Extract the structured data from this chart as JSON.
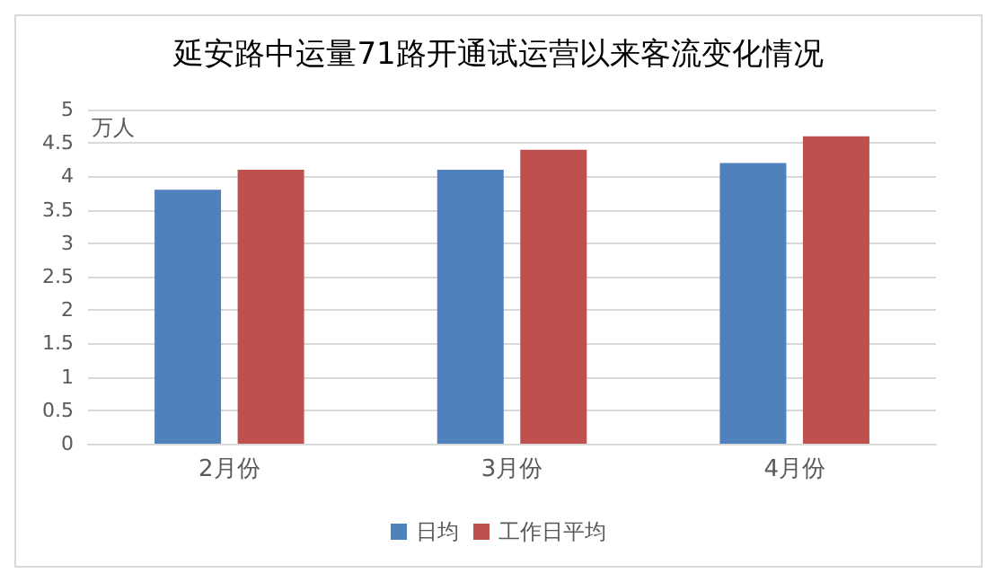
{
  "chart_data": {
    "type": "bar",
    "title": "延安路中运量71路开通试运营以来客流变化情况",
    "ylabel": "万人",
    "categories": [
      "2月份",
      "3月份",
      "4月份"
    ],
    "series": [
      {
        "name": "日均",
        "color": "#4f81bd",
        "values": [
          3.8,
          4.1,
          4.2
        ]
      },
      {
        "name": "工作日平均",
        "color": "#c0504d",
        "values": [
          4.1,
          4.4,
          4.6
        ]
      }
    ],
    "ylim": [
      0,
      5
    ],
    "yticks": [
      0,
      0.5,
      1,
      1.5,
      2,
      2.5,
      3,
      3.5,
      4,
      4.5,
      5
    ],
    "grid": "y",
    "legend": "bottom"
  }
}
